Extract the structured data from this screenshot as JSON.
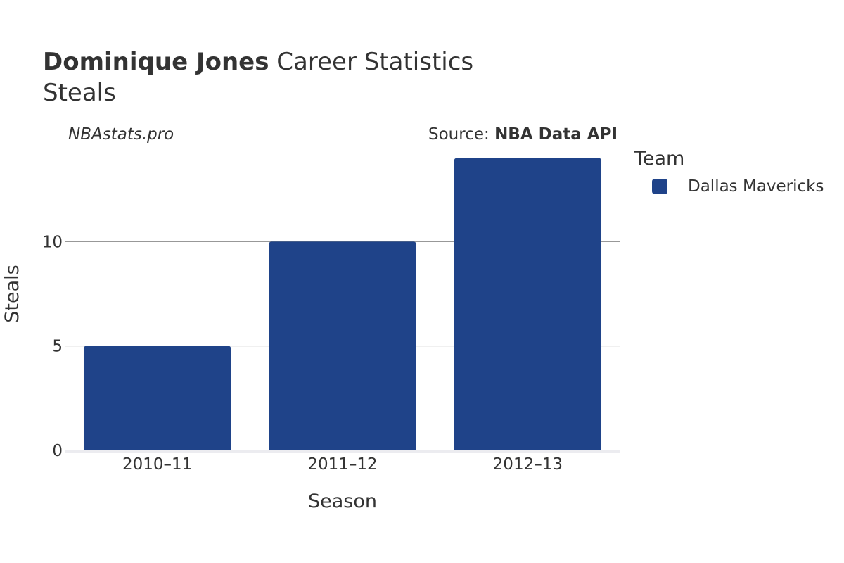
{
  "header": {
    "player": "Dominique Jones",
    "title_rest": "Career Statistics",
    "subtitle": "Steals"
  },
  "watermark": "NBAstats.pro",
  "source": {
    "prefix": "Source: ",
    "name": "NBA Data API"
  },
  "legend": {
    "title": "Team",
    "items": [
      {
        "label": "Dallas Mavericks",
        "color": "#1f4389"
      }
    ]
  },
  "chart_data": {
    "type": "bar",
    "categories": [
      "2010–11",
      "2011–12",
      "2012–13"
    ],
    "series": [
      {
        "name": "Dallas Mavericks",
        "values": [
          5,
          10,
          14
        ],
        "color": "#1f4389"
      }
    ],
    "xlabel": "Season",
    "ylabel": "Steals",
    "ylim": [
      0,
      15
    ],
    "yticks": [
      0,
      5,
      10
    ],
    "grid": true,
    "legend_position": "right"
  }
}
